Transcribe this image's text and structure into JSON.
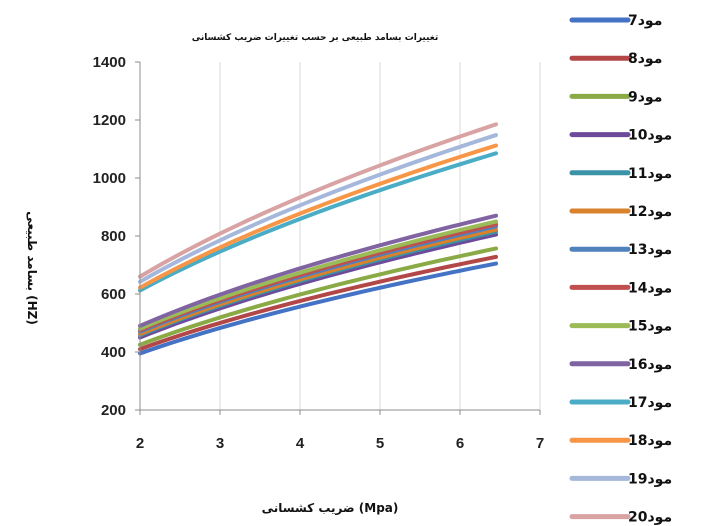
{
  "chart_data": {
    "type": "line",
    "title": "تغییرات بسامد طبیعی بر حسب تغییرات ضریب کشسانی",
    "xlabel": "ضریب کشسانی (Mpa)",
    "ylabel": "بسامد طبیعی (HZ)",
    "xlim": [
      2,
      7
    ],
    "ylim": [
      200,
      1400
    ],
    "xticks": [
      "2",
      "3",
      "4",
      "5",
      "6",
      "7"
    ],
    "yticks": [
      "200",
      "400",
      "600",
      "800",
      "1000",
      "1200",
      "1400"
    ],
    "grid": "vertical",
    "legend": "right",
    "x": [
      2,
      6.45
    ],
    "series": [
      {
        "name": "مود7",
        "color": "#4472C4",
        "values": [
          395,
          705
        ]
      },
      {
        "name": "مود8",
        "color": "#B34747",
        "values": [
          410,
          728
        ]
      },
      {
        "name": "مود9",
        "color": "#8AAA46",
        "values": [
          425,
          757
        ]
      },
      {
        "name": "مود10",
        "color": "#6E4B9A",
        "values": [
          450,
          805
        ]
      },
      {
        "name": "مود11",
        "color": "#3B93A7",
        "values": [
          458,
          815
        ]
      },
      {
        "name": "مود12",
        "color": "#D9822B",
        "values": [
          462,
          822
        ]
      },
      {
        "name": "مود13",
        "color": "#4F81BD",
        "values": [
          470,
          833
        ]
      },
      {
        "name": "مود14",
        "color": "#C0504D",
        "values": [
          475,
          840
        ]
      },
      {
        "name": "مود15",
        "color": "#9BBB59",
        "values": [
          480,
          850
        ]
      },
      {
        "name": "مود16",
        "color": "#8064A2",
        "values": [
          490,
          870
        ]
      },
      {
        "name": "مود17",
        "color": "#4BACC6",
        "values": [
          612,
          1085
        ]
      },
      {
        "name": "مود18",
        "color": "#F79646",
        "values": [
          622,
          1112
        ]
      },
      {
        "name": "مود19",
        "color": "#A5B8DC",
        "values": [
          642,
          1148
        ]
      },
      {
        "name": "مود20",
        "color": "#D9A3A3",
        "values": [
          660,
          1185
        ]
      }
    ]
  }
}
